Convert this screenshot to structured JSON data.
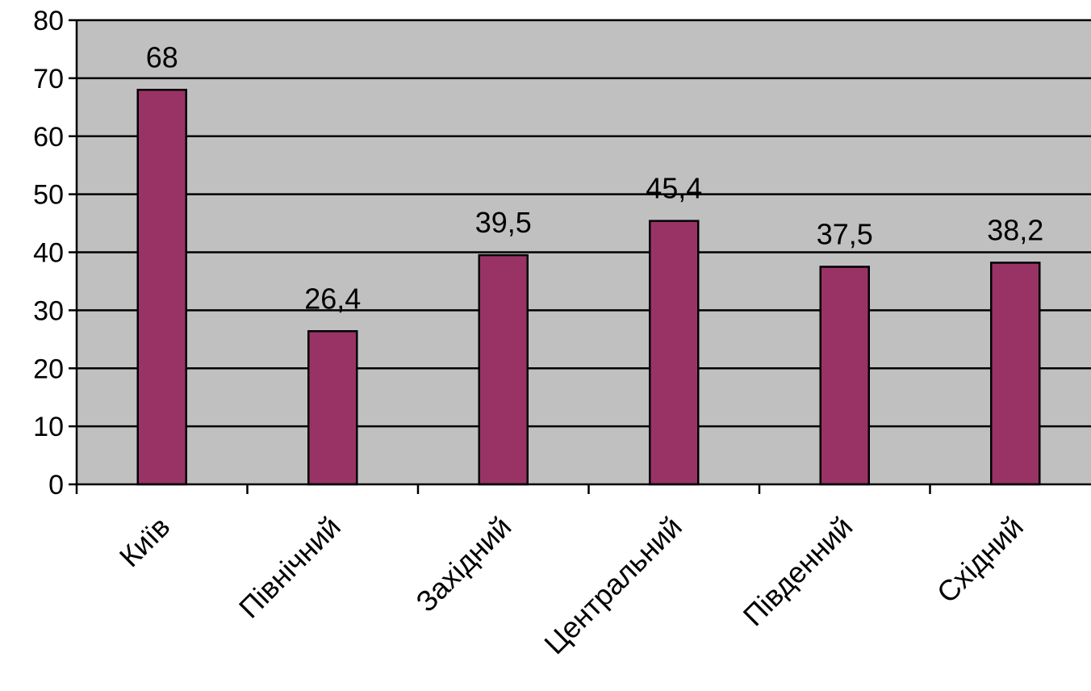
{
  "chart_data": {
    "type": "bar",
    "categories": [
      "Київ",
      "Північний",
      "Західний",
      "Центральний",
      "Південний",
      "Східний"
    ],
    "values": [
      68,
      26.4,
      39.5,
      45.4,
      37.5,
      38.2
    ],
    "data_labels": [
      "68",
      "26,4",
      "39,5",
      "45,4",
      "37,5",
      "38,2"
    ],
    "title": "",
    "xlabel": "",
    "ylabel": "",
    "ylim": [
      0,
      80
    ],
    "yticks": [
      0,
      10,
      20,
      30,
      40,
      50,
      60,
      70,
      80
    ],
    "grid": true,
    "legend": "none",
    "plot_background": "#c0c0c0",
    "bar_color": "#993366",
    "bar_edge_color": "#000000"
  }
}
